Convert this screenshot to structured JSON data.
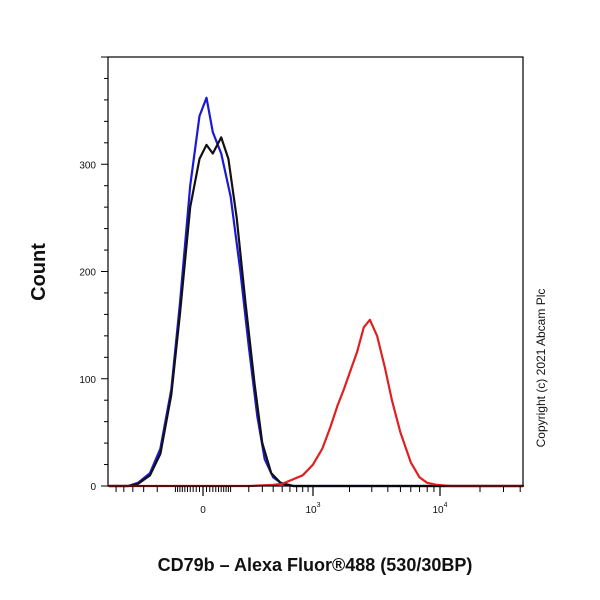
{
  "chart_data": {
    "type": "line",
    "xlabel": "CD79b – Alexa Fluor®488 (530/30BP)",
    "ylabel": "Count",
    "x_scale": "biexponential",
    "x_ticks": [
      {
        "value": 0,
        "base": "0",
        "exp": ""
      },
      {
        "value": 1000,
        "base": "10",
        "exp": "3"
      },
      {
        "value": 10000,
        "base": "10",
        "exp": "4"
      }
    ],
    "y_ticks": [
      0,
      100,
      200,
      300
    ],
    "ylim": [
      0,
      400
    ],
    "grid": false,
    "copyright": "Copyright (c) 2021 Abcam Plc",
    "colors": {
      "blue": "#1a1ad6",
      "black": "#111111",
      "red": "#e02020",
      "axis": "#000000"
    },
    "series": [
      {
        "color": "blue",
        "x": [
          -700,
          -450,
          -350,
          -250,
          -180,
          -120,
          -80,
          -40,
          -10,
          10,
          30,
          60,
          100,
          150,
          200,
          260,
          320,
          400,
          500,
          650,
          900,
          1200,
          2000,
          5000,
          10000,
          50000
        ],
        "y": [
          0,
          0,
          3,
          12,
          35,
          90,
          170,
          280,
          345,
          362,
          330,
          310,
          270,
          200,
          130,
          65,
          25,
          8,
          2,
          0,
          0,
          0,
          0,
          0,
          0,
          0
        ]
      },
      {
        "color": "black",
        "x": [
          -700,
          -450,
          -350,
          -250,
          -180,
          -120,
          -80,
          -40,
          -10,
          10,
          30,
          60,
          90,
          130,
          180,
          240,
          300,
          380,
          480,
          650,
          900,
          1200,
          2000,
          5000,
          10000,
          50000
        ],
        "y": [
          0,
          0,
          2,
          10,
          30,
          85,
          160,
          260,
          305,
          318,
          310,
          325,
          305,
          250,
          170,
          95,
          40,
          12,
          3,
          0,
          0,
          0,
          0,
          0,
          0,
          0
        ]
      },
      {
        "color": "red",
        "x": [
          -700,
          0,
          200,
          400,
          500,
          600,
          800,
          1000,
          1200,
          1400,
          1600,
          1800,
          2000,
          2300,
          2600,
          2900,
          3300,
          3800,
          4300,
          5000,
          6000,
          7000,
          8000,
          9500,
          12000,
          50000
        ],
        "y": [
          0,
          0,
          0,
          1,
          2,
          5,
          10,
          20,
          35,
          55,
          75,
          90,
          105,
          125,
          148,
          155,
          140,
          110,
          80,
          50,
          22,
          8,
          3,
          1,
          0,
          0
        ]
      }
    ]
  }
}
